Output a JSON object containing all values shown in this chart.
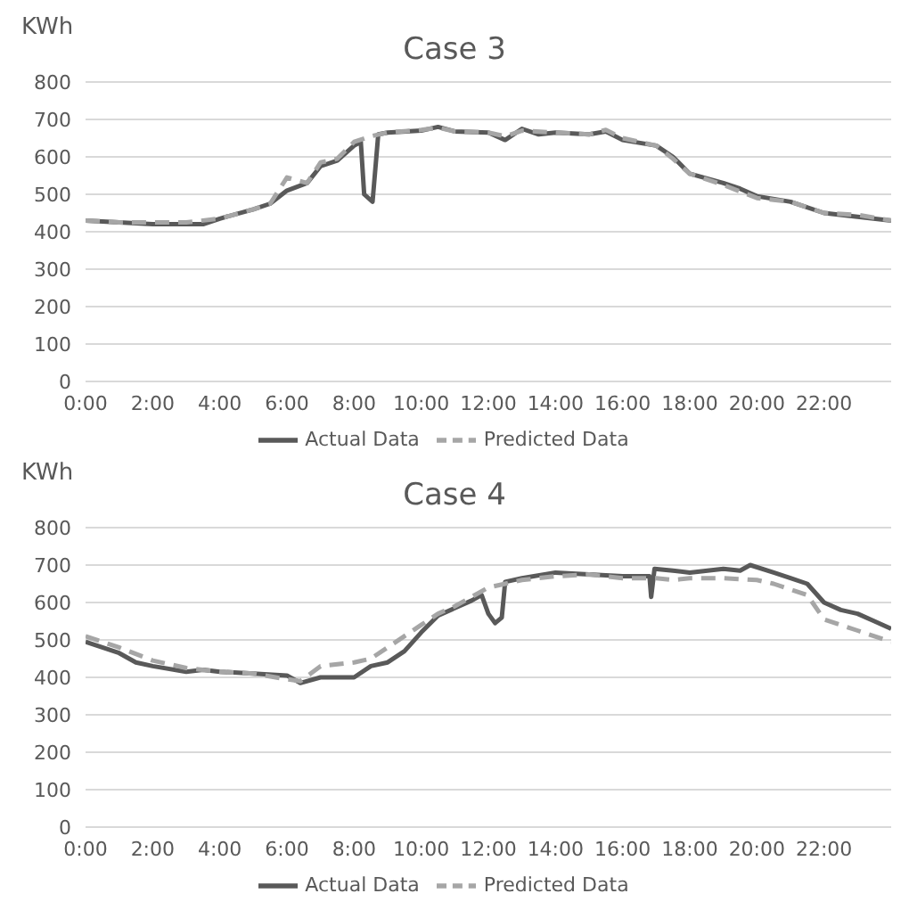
{
  "chart_data": [
    {
      "type": "line",
      "title": "Case 3",
      "ylabel": "KWh",
      "xlim": [
        0,
        24
      ],
      "xticks": [
        {
          "value": 0,
          "label": "0:00"
        },
        {
          "value": 2,
          "label": "2:00"
        },
        {
          "value": 4,
          "label": "4:00"
        },
        {
          "value": 6,
          "label": "6:00"
        },
        {
          "value": 8,
          "label": "8:00"
        },
        {
          "value": 10,
          "label": "10:00"
        },
        {
          "value": 12,
          "label": "12:00"
        },
        {
          "value": 14,
          "label": "14:00"
        },
        {
          "value": 16,
          "label": "16:00"
        },
        {
          "value": 18,
          "label": "18:00"
        },
        {
          "value": 20,
          "label": "20:00"
        },
        {
          "value": 22,
          "label": "22:00"
        }
      ],
      "ylim": [
        0,
        800
      ],
      "yticks": [
        0,
        100,
        200,
        300,
        400,
        500,
        600,
        700,
        800
      ],
      "grid": "y",
      "legend": "bottom",
      "marker": "none",
      "series": [
        {
          "name": "Actual Data",
          "color": "#595959",
          "line_style": "solid",
          "x": [
            0,
            1,
            2,
            3,
            3.5,
            4,
            5,
            5.5,
            6,
            6.6,
            7,
            7.5,
            8,
            8.2,
            8.3,
            8.55,
            8.72,
            9,
            10,
            10.5,
            11,
            12,
            12.5,
            13,
            13.5,
            14,
            15,
            15.5,
            16,
            17,
            17.5,
            18,
            19,
            19.5,
            20,
            21,
            22,
            23,
            24
          ],
          "values": [
            430,
            425,
            420,
            420,
            420,
            435,
            460,
            475,
            510,
            530,
            575,
            590,
            630,
            640,
            500,
            480,
            660,
            665,
            670,
            680,
            668,
            665,
            645,
            675,
            660,
            665,
            660,
            668,
            645,
            630,
            600,
            555,
            530,
            515,
            495,
            480,
            450,
            440,
            430
          ]
        },
        {
          "name": "Predicted Data",
          "color": "#a6a6a6",
          "line_style": "dashed",
          "x": [
            0,
            1,
            2,
            3,
            4,
            5,
            5.5,
            6,
            6.6,
            7,
            7.5,
            8,
            8.5,
            9,
            10,
            10.5,
            11,
            12,
            12.5,
            13,
            14,
            15,
            15.5,
            16,
            17,
            17.5,
            18,
            19,
            20,
            21,
            22,
            23,
            24
          ],
          "values": [
            430,
            425,
            425,
            425,
            435,
            460,
            475,
            545,
            530,
            585,
            595,
            640,
            655,
            665,
            672,
            678,
            668,
            665,
            655,
            670,
            665,
            660,
            672,
            650,
            630,
            595,
            555,
            525,
            490,
            480,
            450,
            445,
            430
          ]
        }
      ]
    },
    {
      "type": "line",
      "title": "Case 4",
      "ylabel": "KWh",
      "xlim": [
        0,
        24
      ],
      "xticks": [
        {
          "value": 0,
          "label": "0:00"
        },
        {
          "value": 2,
          "label": "2:00"
        },
        {
          "value": 4,
          "label": "4:00"
        },
        {
          "value": 6,
          "label": "6:00"
        },
        {
          "value": 8,
          "label": "8:00"
        },
        {
          "value": 10,
          "label": "10:00"
        },
        {
          "value": 12,
          "label": "12:00"
        },
        {
          "value": 14,
          "label": "14:00"
        },
        {
          "value": 16,
          "label": "16:00"
        },
        {
          "value": 18,
          "label": "18:00"
        },
        {
          "value": 20,
          "label": "20:00"
        },
        {
          "value": 22,
          "label": "22:00"
        }
      ],
      "ylim": [
        0,
        800
      ],
      "yticks": [
        0,
        100,
        200,
        300,
        400,
        500,
        600,
        700,
        800
      ],
      "grid": "y",
      "legend": "bottom",
      "marker": "none",
      "series": [
        {
          "name": "Actual Data",
          "color": "#595959",
          "line_style": "solid",
          "x": [
            0,
            1,
            1.5,
            2,
            3,
            3.5,
            4,
            5,
            6,
            6.4,
            7,
            8,
            8.5,
            9,
            9.5,
            10,
            10.5,
            11,
            11.5,
            11.8,
            12,
            12.2,
            12.4,
            12.5,
            13,
            14,
            15,
            16,
            16.8,
            16.85,
            16.95,
            17.5,
            18,
            19,
            19.5,
            19.8,
            20.5,
            21,
            21.5,
            22,
            22.5,
            23,
            23.5,
            24
          ],
          "values": [
            495,
            465,
            440,
            430,
            415,
            420,
            415,
            410,
            405,
            385,
            400,
            400,
            430,
            440,
            470,
            520,
            565,
            585,
            605,
            620,
            570,
            545,
            560,
            655,
            665,
            680,
            675,
            670,
            670,
            615,
            690,
            685,
            680,
            690,
            685,
            700,
            680,
            665,
            650,
            600,
            580,
            570,
            550,
            530
          ]
        },
        {
          "name": "Predicted Data",
          "color": "#a6a6a6",
          "line_style": "dashed",
          "x": [
            0,
            1,
            2,
            3,
            4,
            5,
            6,
            6.4,
            7,
            8,
            8.5,
            9,
            10,
            10.5,
            11,
            12,
            12.5,
            13,
            14,
            15,
            16,
            17,
            17.5,
            18,
            19,
            20,
            20.5,
            21,
            21.5,
            22,
            22.5,
            23,
            24
          ],
          "values": [
            510,
            480,
            445,
            425,
            415,
            410,
            395,
            390,
            430,
            440,
            450,
            480,
            540,
            570,
            590,
            640,
            650,
            660,
            670,
            675,
            665,
            665,
            660,
            665,
            665,
            660,
            650,
            635,
            620,
            555,
            540,
            525,
            495
          ]
        }
      ]
    }
  ]
}
